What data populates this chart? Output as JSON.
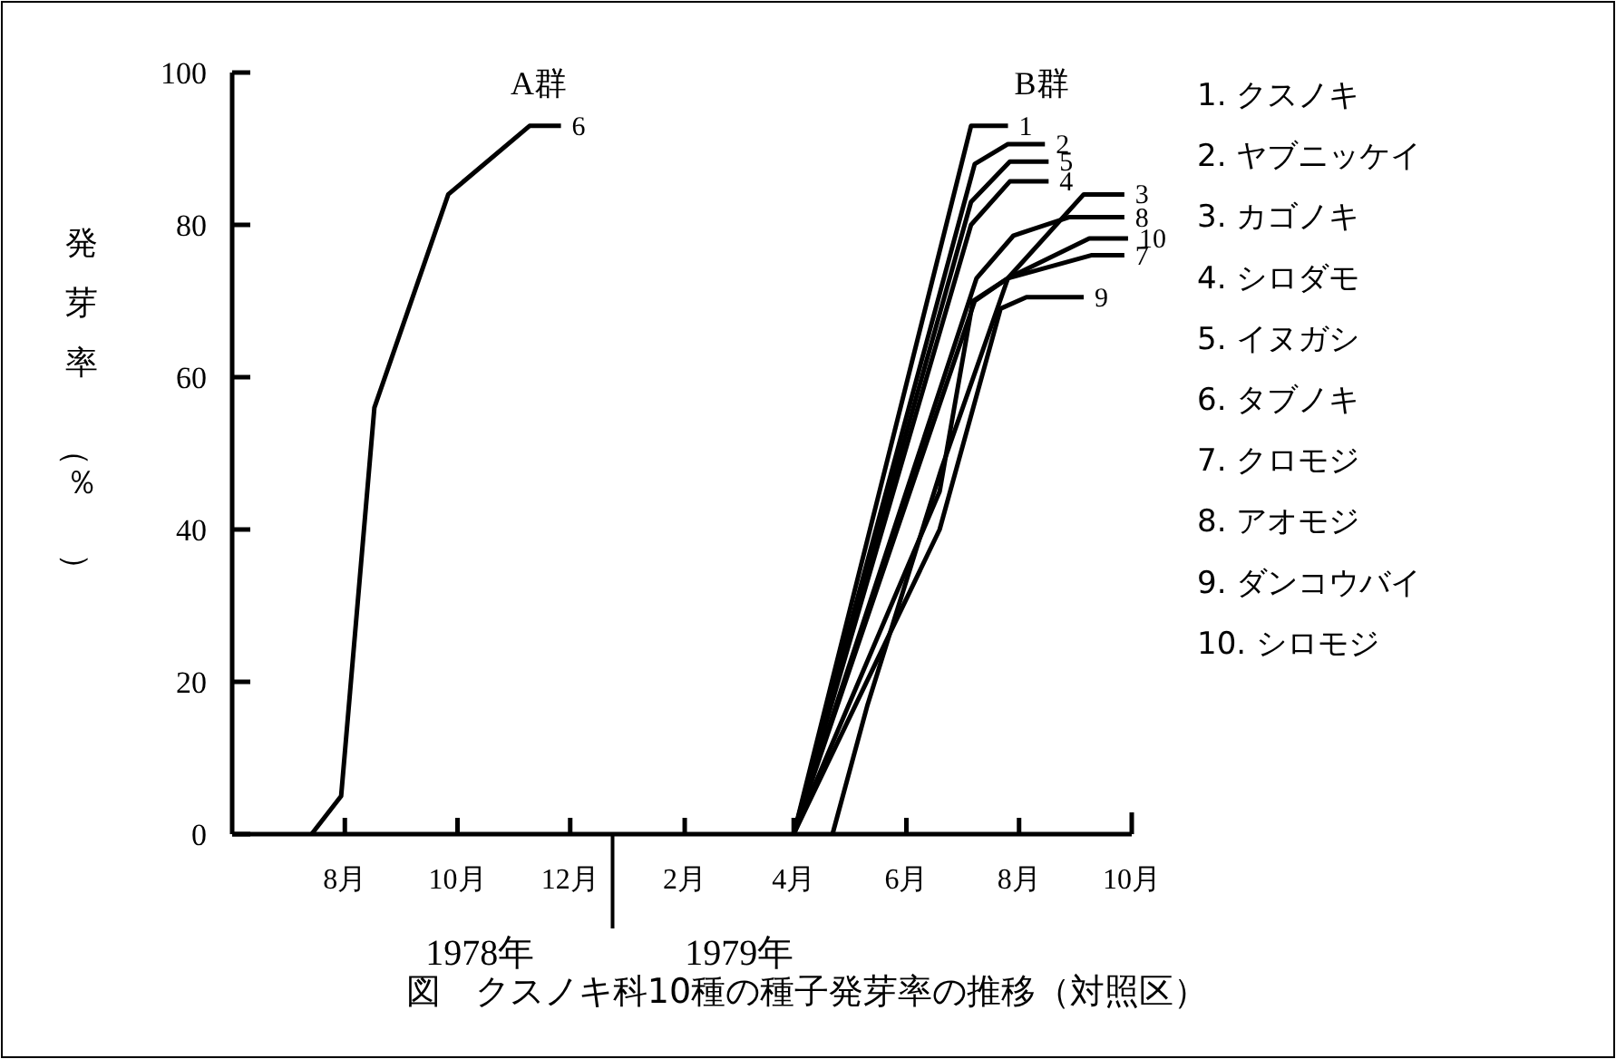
{
  "chart_data": {
    "type": "line",
    "title": "図　クスノキ科10種の種子発芽率の推移（対照区）",
    "ylabel": "発芽率（％）",
    "xlim": [
      "1978-06-01",
      "1979-10-01"
    ],
    "xticks": [
      {
        "value": "1978-08-01",
        "label": "8月"
      },
      {
        "value": "1978-10-01",
        "label": "10月"
      },
      {
        "value": "1978-12-01",
        "label": "12月"
      },
      {
        "value": "1979-02-01",
        "label": "2月"
      },
      {
        "value": "1979-04-01",
        "label": "4月"
      },
      {
        "value": "1979-06-01",
        "label": "6月"
      },
      {
        "value": "1979-08-01",
        "label": "8月"
      },
      {
        "value": "1979-10-01",
        "label": "10月"
      }
    ],
    "ylim": [
      0,
      100
    ],
    "yticks": [
      0,
      20,
      40,
      60,
      80,
      100
    ],
    "line_style": "solid",
    "series": [
      {
        "color": "#000000",
        "x": [
          "1979-04-01",
          "1979-07-06",
          "1979-07-26"
        ],
        "values": [
          0,
          93,
          93
        ]
      },
      {
        "color": "#000000",
        "x": [
          "1979-04-01",
          "1979-07-08",
          "1979-07-26",
          "1979-08-15"
        ],
        "values": [
          0,
          88,
          90.6,
          90.6
        ]
      },
      {
        "color": "#000000",
        "x": [
          "1979-04-22",
          "1979-05-11",
          "1979-06-20",
          "1979-07-26",
          "1979-09-05",
          "1979-09-27"
        ],
        "values": [
          0,
          17,
          48,
          73,
          84,
          84
        ]
      },
      {
        "color": "#000000",
        "x": [
          "1979-04-01",
          "1979-07-06",
          "1979-07-27",
          "1979-08-17"
        ],
        "values": [
          0,
          80,
          85.7,
          85.7
        ]
      },
      {
        "color": "#000000",
        "x": [
          "1979-04-01",
          "1979-07-06",
          "1979-07-27",
          "1979-08-17"
        ],
        "values": [
          0,
          83,
          88.3,
          88.3
        ]
      },
      {
        "color": "#000000",
        "x": [
          "1978-07-14",
          "1978-07-30",
          "1978-08-17",
          "1978-09-26",
          "1978-11-09",
          "1978-11-26"
        ],
        "values": [
          0,
          5,
          56,
          84,
          93,
          93
        ]
      },
      {
        "color": "#000000",
        "x": [
          "1979-04-01",
          "1979-06-19",
          "1979-07-07",
          "1979-07-26",
          "1979-09-09",
          "1979-09-27"
        ],
        "values": [
          0,
          45,
          70,
          73,
          76,
          76
        ]
      },
      {
        "color": "#000000",
        "x": [
          "1979-04-01",
          "1979-07-09",
          "1979-07-29",
          "1979-08-28",
          "1979-09-27"
        ],
        "values": [
          0,
          73,
          78.6,
          81,
          81
        ]
      },
      {
        "color": "#000000",
        "x": [
          "1979-04-01",
          "1979-06-19",
          "1979-07-22",
          "1979-08-05",
          "1979-09-05"
        ],
        "values": [
          0,
          40,
          69,
          70.5,
          70.5
        ]
      },
      {
        "color": "#000000",
        "x": [
          "1979-04-01",
          "1979-07-08",
          "1979-07-26",
          "1979-09-08",
          "1979-09-29"
        ],
        "values": [
          0,
          70,
          73,
          78.2,
          78.2
        ]
      }
    ],
    "annotations": [
      "A群",
      "B群",
      "1978年",
      "1979年",
      "1.  クスノキ",
      "2.  ヤブニッケイ",
      "3.  カゴノキ",
      "4.  シロダモ",
      "5.  イヌガシ",
      "6.  タブノキ",
      "7.  クロモジ",
      "8.  アオモジ",
      "9.  ダンコウバイ",
      "10.  シロモジ",
      {
        "text": "1",
        "x": "1979-07-26",
        "y": 93
      },
      {
        "text": "2",
        "x": "1979-08-15",
        "y": 90.6
      },
      {
        "text": "5",
        "x": "1979-08-17",
        "y": 88.3
      },
      {
        "text": "4",
        "x": "1979-08-17",
        "y": 85.7
      },
      {
        "text": "3",
        "x": "1979-09-27",
        "y": 84
      },
      {
        "text": "8",
        "x": "1979-09-27",
        "y": 81
      },
      {
        "text": "10",
        "x": "1979-09-29",
        "y": 78.2
      },
      {
        "text": "7",
        "x": "1979-09-27",
        "y": 76
      },
      {
        "text": "9",
        "x": "1979-09-05",
        "y": 70.5
      },
      {
        "text": "6",
        "x": "1978-11-26",
        "y": 93
      }
    ]
  }
}
